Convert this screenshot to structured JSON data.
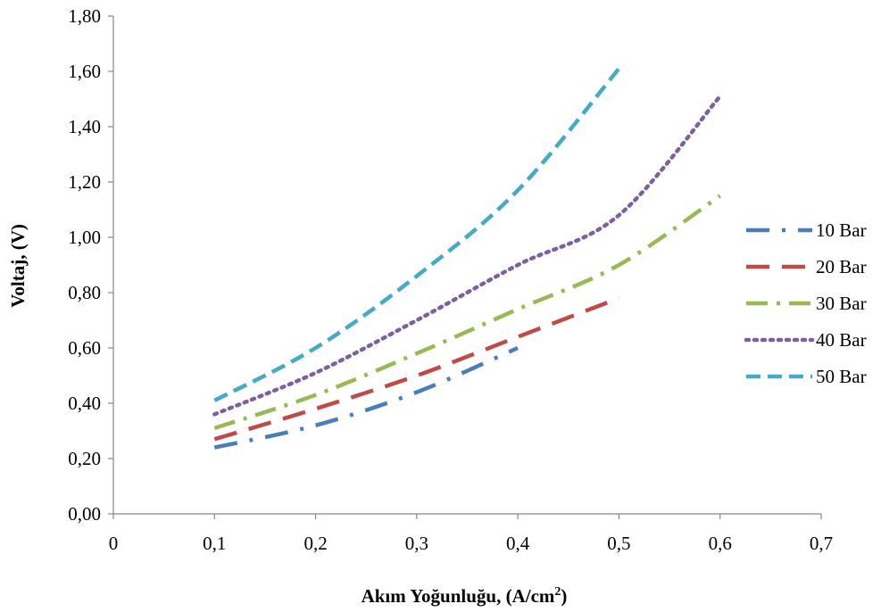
{
  "chart_data": {
    "type": "line",
    "title": "",
    "xlabel": "Akım Yoğunluğu, (A/cm",
    "xlabel_sup": "2",
    "xlabel_end": ")",
    "ylabel": "Voltaj, (V)",
    "xlim": [
      0,
      0.7
    ],
    "ylim": [
      0,
      1.8
    ],
    "x_ticks": [
      0,
      0.1,
      0.2,
      0.3,
      0.4,
      0.5,
      0.6,
      0.7
    ],
    "x_tick_labels": [
      "0",
      "0,1",
      "0,2",
      "0,3",
      "0,4",
      "0,5",
      "0,6",
      "0,7"
    ],
    "y_ticks": [
      0,
      0.2,
      0.4,
      0.6,
      0.8,
      1.0,
      1.2,
      1.4,
      1.6,
      1.8
    ],
    "y_tick_labels": [
      "0,00",
      "0,20",
      "0,40",
      "0,60",
      "0,80",
      "1,00",
      "1,20",
      "1,40",
      "1,60",
      "1,80"
    ],
    "grid": false,
    "legend_position": "right",
    "series": [
      {
        "name": "10 Bar",
        "color": "#4a7ebb",
        "dash": "dash-dot",
        "x": [
          0.1,
          0.2,
          0.3,
          0.4
        ],
        "y": [
          0.24,
          0.32,
          0.44,
          0.6
        ]
      },
      {
        "name": "20 Bar",
        "color": "#be4b48",
        "dash": "long-dash",
        "x": [
          0.1,
          0.2,
          0.3,
          0.4,
          0.5
        ],
        "y": [
          0.27,
          0.38,
          0.5,
          0.64,
          0.78
        ]
      },
      {
        "name": "30 Bar",
        "color": "#98b954",
        "dash": "long-dash-dot",
        "x": [
          0.1,
          0.2,
          0.3,
          0.4,
          0.5,
          0.6
        ],
        "y": [
          0.31,
          0.43,
          0.58,
          0.74,
          0.9,
          1.15
        ]
      },
      {
        "name": "40 Bar",
        "color": "#7d60a0",
        "dash": "dot",
        "x": [
          0.1,
          0.2,
          0.3,
          0.4,
          0.5,
          0.6
        ],
        "y": [
          0.36,
          0.51,
          0.7,
          0.9,
          1.08,
          1.51
        ]
      },
      {
        "name": "50 Bar",
        "color": "#46aac5",
        "dash": "dash",
        "x": [
          0.1,
          0.2,
          0.3,
          0.4,
          0.5
        ],
        "y": [
          0.41,
          0.6,
          0.86,
          1.17,
          1.61
        ]
      }
    ]
  }
}
